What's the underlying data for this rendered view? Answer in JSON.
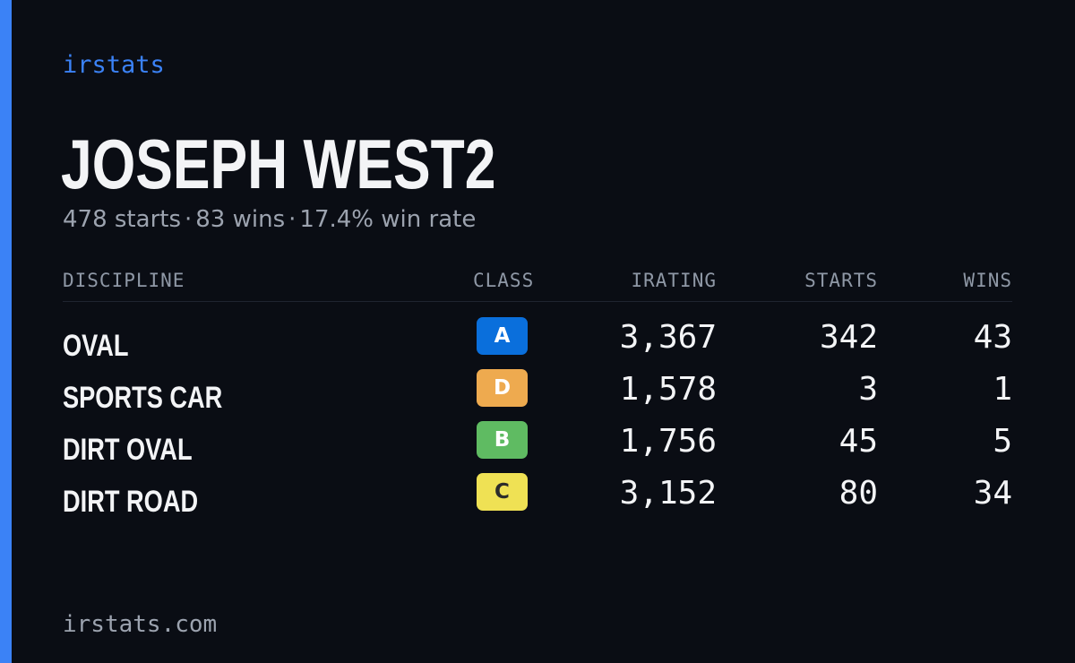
{
  "brand": "irstats",
  "player": {
    "name": "JOSEPH WEST2",
    "summary": {
      "starts": "478 starts",
      "wins": "83 wins",
      "win_rate": "17.4% win rate",
      "separator": "·"
    }
  },
  "table": {
    "headers": {
      "discipline": "DISCIPLINE",
      "class": "CLASS",
      "irating": "IRATING",
      "starts": "STARTS",
      "wins": "WINS"
    },
    "rows": [
      {
        "discipline": "OVAL",
        "class": "A",
        "class_color": "#0a6fdc",
        "class_text_color": "#ffffff",
        "irating": "3,367",
        "starts": "342",
        "wins": "43"
      },
      {
        "discipline": "SPORTS CAR",
        "class": "D",
        "class_color": "#eeaa4f",
        "class_text_color": "#ffffff",
        "irating": "1,578",
        "starts": "3",
        "wins": "1"
      },
      {
        "discipline": "DIRT OVAL",
        "class": "B",
        "class_color": "#5fbb62",
        "class_text_color": "#ffffff",
        "irating": "1,756",
        "starts": "45",
        "wins": "5"
      },
      {
        "discipline": "DIRT ROAD",
        "class": "C",
        "class_color": "#efe154",
        "class_text_color": "#2b2b2b",
        "irating": "3,152",
        "starts": "80",
        "wins": "34"
      }
    ]
  },
  "footer": "irstats.com",
  "colors": {
    "background": "#0a0d14",
    "accent": "#3b82f6",
    "muted_text": "#9ca3af"
  }
}
